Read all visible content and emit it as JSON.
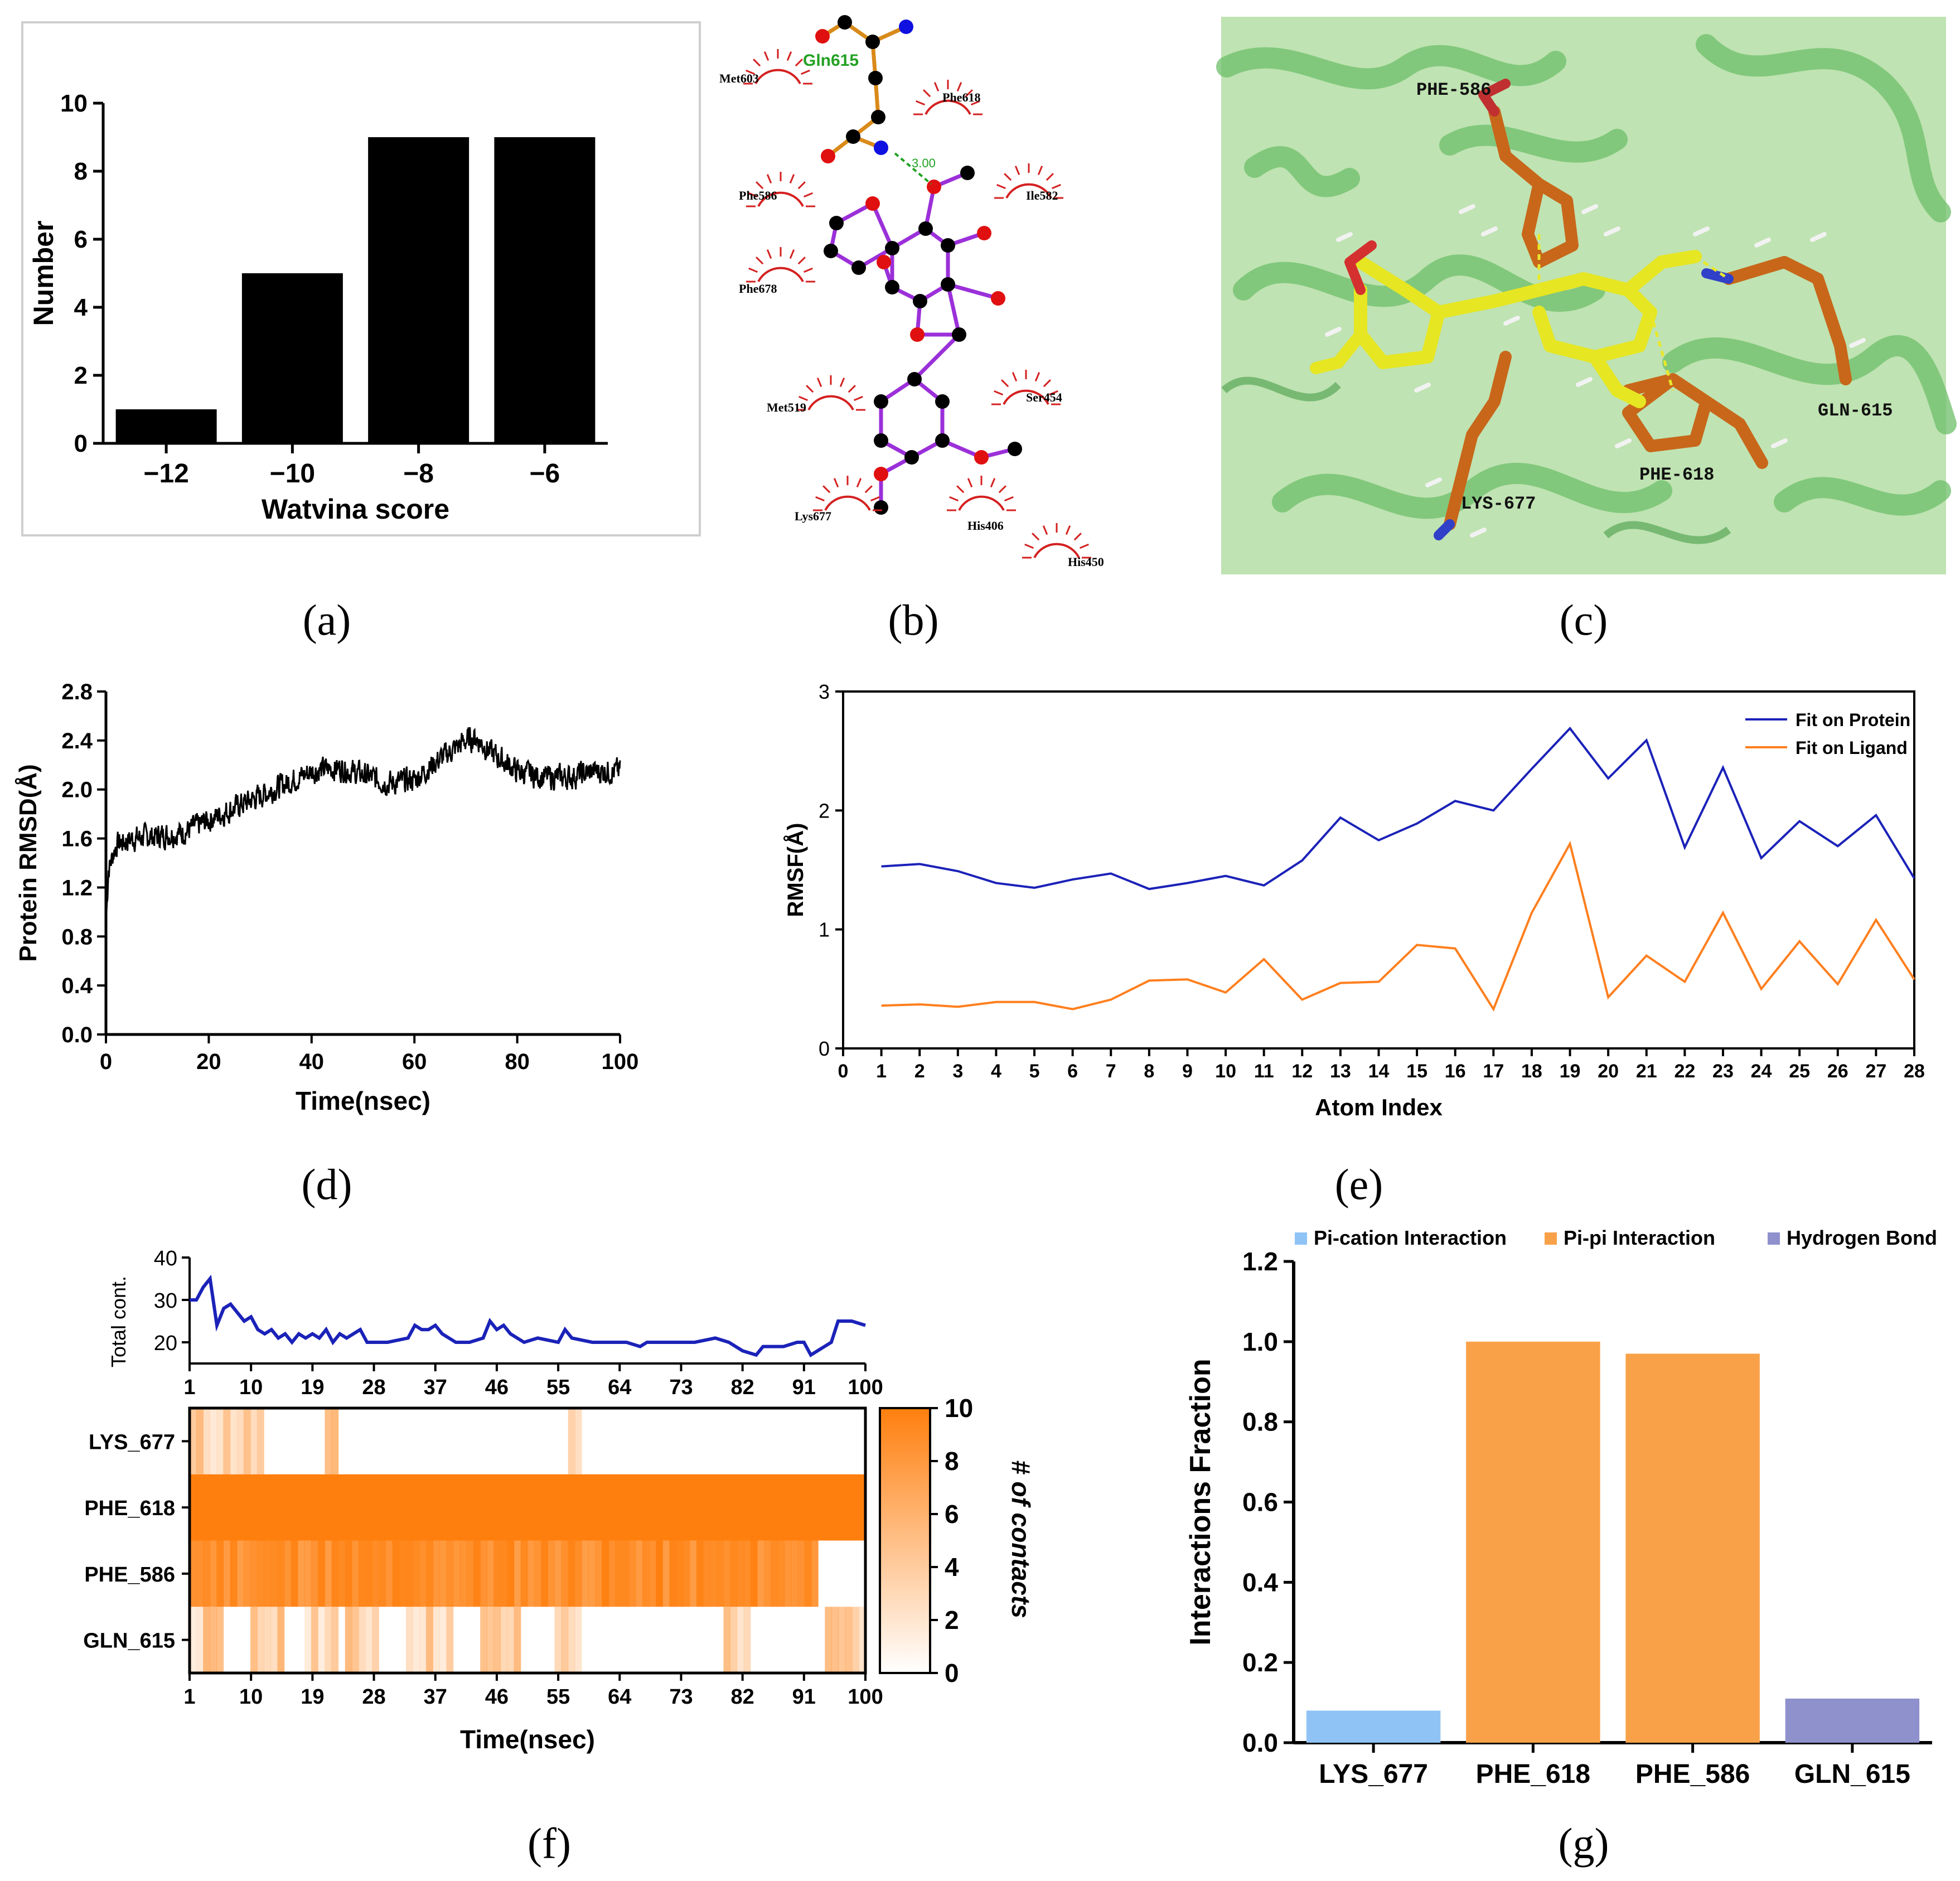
{
  "panel_labels": {
    "a": "(a)",
    "b": "(b)",
    "c": "(c)",
    "d": "(d)",
    "e": "(e)",
    "f": "(f)",
    "g": "(g)"
  },
  "colors": {
    "blue": "#1b22b8",
    "orange": "#ff7f1e",
    "pi_cation": "#8fc3f6",
    "pi_pi": "#f9a148",
    "hbond": "#8e91cc",
    "heat": "#ff7f0e",
    "bar_black": "#000000",
    "red_arc": "#d42020",
    "ligand_bond": "#9b30d9",
    "hbond_line": "#22a122",
    "protein_green": "#4fae4f",
    "stick_orange": "#c8671a",
    "stick_yellow": "#e6e622"
  },
  "chart_data": [
    {
      "id": "a",
      "type": "bar",
      "categories": [
        "−12",
        "−10",
        "−8",
        "−6"
      ],
      "values": [
        1,
        5,
        9,
        9
      ],
      "xlabel": "Watvina score",
      "ylabel": "Number",
      "ylim": [
        0,
        10
      ],
      "yticks": [
        0,
        2,
        4,
        6,
        8,
        10
      ]
    },
    {
      "id": "d",
      "type": "line",
      "xlabel": "Time(nsec)",
      "ylabel": "Protein RMSD(Å)",
      "xlim": [
        0,
        100
      ],
      "ylim": [
        0,
        2.8
      ],
      "xticks": [
        "0",
        "20",
        "40",
        "60",
        "80",
        "100"
      ],
      "yticks": [
        "0.0",
        "0.4",
        "0.8",
        "1.2",
        "1.6",
        "2.0",
        "2.4",
        "2.8"
      ],
      "trend_x": [
        0,
        0.5,
        2,
        5,
        10,
        15,
        20,
        25,
        30,
        35,
        40,
        45,
        50,
        55,
        60,
        65,
        70,
        72,
        75,
        80,
        85,
        90,
        95,
        100
      ],
      "trend_y": [
        0.9,
        1.35,
        1.55,
        1.6,
        1.62,
        1.65,
        1.75,
        1.85,
        1.95,
        2.05,
        2.15,
        2.18,
        2.12,
        2.05,
        2.08,
        2.25,
        2.4,
        2.42,
        2.3,
        2.15,
        2.1,
        2.1,
        2.15,
        2.15
      ],
      "noise": 0.09,
      "samples": 1000
    },
    {
      "id": "e",
      "type": "line",
      "xlabel": "Atom Index",
      "ylabel": "RMSF(Å)",
      "xlim": [
        0,
        28
      ],
      "ylim": [
        0,
        3
      ],
      "yticks": [
        "0",
        "1",
        "2",
        "3"
      ],
      "x": [
        1,
        2,
        3,
        4,
        5,
        6,
        7,
        8,
        9,
        10,
        11,
        12,
        13,
        14,
        15,
        16,
        17,
        18,
        19,
        20,
        21,
        22,
        23,
        24,
        25,
        26,
        27,
        28
      ],
      "series": [
        {
          "name": "Fit on Protein",
          "color": "#1b22b8",
          "values": [
            1.53,
            1.55,
            1.49,
            1.39,
            1.35,
            1.42,
            1.47,
            1.34,
            1.39,
            1.45,
            1.37,
            1.58,
            1.94,
            1.75,
            1.89,
            2.08,
            2.0,
            2.35,
            2.69,
            2.27,
            2.59,
            1.69,
            2.36,
            1.6,
            1.91,
            1.7,
            1.96,
            1.43
          ]
        },
        {
          "name": "Fit on Ligand",
          "color": "#ff7f1e",
          "values": [
            0.36,
            0.37,
            0.35,
            0.39,
            0.39,
            0.33,
            0.41,
            0.57,
            0.58,
            0.47,
            0.75,
            0.41,
            0.55,
            0.56,
            0.87,
            0.84,
            0.33,
            1.14,
            1.72,
            0.43,
            0.78,
            0.56,
            1.14,
            0.5,
            0.9,
            0.54,
            1.08,
            0.58
          ]
        }
      ]
    },
    {
      "id": "f_top",
      "type": "line",
      "ylabel": "Total cont.",
      "xlim": [
        1,
        100
      ],
      "ylim": [
        15,
        40
      ],
      "yticks": [
        "20",
        "30",
        "40"
      ],
      "xticks": [
        "1",
        "10",
        "19",
        "28",
        "37",
        "46",
        "55",
        "64",
        "73",
        "82",
        "91",
        "100"
      ],
      "x": [
        1,
        2,
        3,
        4,
        5,
        6,
        7,
        8,
        9,
        10,
        11,
        12,
        13,
        14,
        15,
        16,
        17,
        18,
        19,
        20,
        21,
        22,
        23,
        24,
        25,
        26,
        27,
        28,
        30,
        33,
        34,
        35,
        36,
        37,
        38,
        40,
        42,
        44,
        45,
        46,
        47,
        48,
        50,
        52,
        55,
        56,
        57,
        60,
        63,
        65,
        67,
        68,
        70,
        72,
        75,
        78,
        80,
        82,
        84,
        85,
        88,
        90,
        91,
        92,
        95,
        96,
        98,
        100
      ],
      "y": [
        30,
        30,
        33,
        35,
        24,
        28,
        29,
        27,
        25,
        26,
        23,
        22,
        23,
        21,
        22,
        20,
        22,
        21,
        22,
        21,
        23,
        20,
        22,
        21,
        22,
        23,
        20,
        20,
        20,
        21,
        24,
        23,
        23,
        24,
        22,
        20,
        20,
        21,
        25,
        23,
        24,
        22,
        20,
        21,
        20,
        23,
        21,
        20,
        20,
        20,
        19,
        20,
        20,
        20,
        20,
        21,
        20,
        18,
        17,
        19,
        19,
        20,
        20,
        17,
        20,
        25,
        25,
        24
      ]
    },
    {
      "id": "f_heat",
      "type": "heatmap",
      "xlabel": "Time(nsec)",
      "colorbar_label": "# of contacts",
      "rows": [
        "LYS_677",
        "PHE_618",
        "PHE_586",
        "GLN_615"
      ],
      "xticks": [
        "1",
        "10",
        "19",
        "28",
        "37",
        "46",
        "55",
        "64",
        "73",
        "82",
        "91",
        "100"
      ],
      "colorbar_ticks": [
        "0",
        "2",
        "4",
        "6",
        "8",
        "10"
      ],
      "frames": 100,
      "full_rows": [
        "PHE_618"
      ],
      "dense_segments": {
        "LYS_677": [
          [
            1,
            11
          ],
          [
            21,
            22
          ],
          [
            57,
            58
          ]
        ],
        "PHE_586": [
          [
            1,
            93
          ]
        ],
        "GLN_615": [
          [
            1,
            5
          ],
          [
            10,
            14
          ],
          [
            18,
            22
          ],
          [
            24,
            28
          ],
          [
            33,
            39
          ],
          [
            44,
            49
          ],
          [
            55,
            58
          ],
          [
            80,
            83
          ],
          [
            95,
            100
          ]
        ]
      }
    },
    {
      "id": "g",
      "type": "bar",
      "categories": [
        "LYS_677",
        "PHE_618",
        "PHE_586",
        "GLN_615"
      ],
      "values": [
        0.08,
        1.0,
        0.97,
        0.11
      ],
      "bar_colors": [
        "#8fc3f6",
        "#f9a148",
        "#f9a148",
        "#8e91cc"
      ],
      "ylabel": "Interactions Fraction",
      "ylim": [
        0,
        1.2
      ],
      "yticks": [
        "0.0",
        "0.2",
        "0.4",
        "0.6",
        "0.8",
        "1.0",
        "1.2"
      ],
      "legend": [
        {
          "name": "Pi-cation Interaction",
          "color": "#8fc3f6"
        },
        {
          "name": "Pi-pi Interaction",
          "color": "#f9a148"
        },
        {
          "name": "Hydrogen Bond",
          "color": "#8e91cc"
        }
      ]
    }
  ],
  "ligplot": {
    "hbond_residue": "Gln615",
    "hbond_distance": "3.00",
    "residues": [
      "Met603",
      "Phe618",
      "Phe586",
      "Ile582",
      "Phe678",
      "Met519",
      "Ser454",
      "Lys677",
      "His406",
      "His450"
    ]
  },
  "structure3d": {
    "labels": [
      "PHE-586",
      "GLN-615",
      "PHE-618",
      "LYS-677"
    ]
  }
}
